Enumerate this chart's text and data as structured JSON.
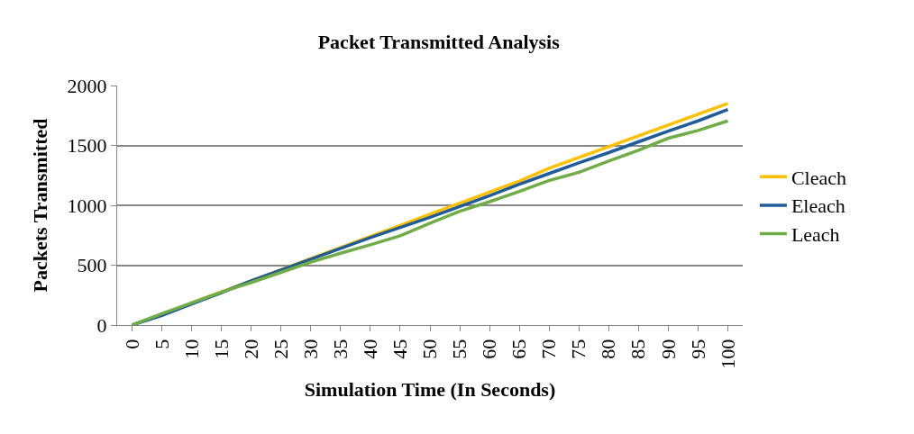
{
  "chart_data": {
    "type": "line",
    "title": "Packet Transmitted Analysis",
    "xlabel": "Simulation Time (In Seconds)",
    "ylabel": "Packets Transmitted",
    "categories": [
      "0",
      "5",
      "10",
      "15",
      "20",
      "25",
      "30",
      "35",
      "40",
      "45",
      "50",
      "55",
      "60",
      "65",
      "70",
      "75",
      "80",
      "85",
      "90",
      "95",
      "100"
    ],
    "series": [
      {
        "name": "Cleach",
        "color": "#ffc000",
        "values": [
          null,
          null,
          185,
          277,
          370,
          462,
          555,
          647,
          740,
          832,
          925,
          1017,
          1110,
          1202,
          1310,
          1400,
          1490,
          1580,
          1670,
          1760,
          1850
        ]
      },
      {
        "name": "Eleach",
        "color": "#1f5c99",
        "values": [
          0,
          80,
          175,
          270,
          370,
          460,
          550,
          640,
          730,
          815,
          900,
          990,
          1080,
          1175,
          1265,
          1355,
          1440,
          1530,
          1620,
          1705,
          1800
        ]
      },
      {
        "name": "Leach",
        "color": "#70ad47",
        "values": [
          0,
          95,
          185,
          275,
          355,
          440,
          525,
          600,
          670,
          745,
          850,
          950,
          1030,
          1115,
          1207,
          1275,
          1370,
          1460,
          1560,
          1625,
          1705
        ]
      }
    ],
    "ylim": [
      0,
      2000
    ],
    "yticks": [
      0,
      500,
      1000,
      1500,
      2000
    ],
    "grid": "y",
    "legend": "right",
    "marker": "none",
    "line_style": "solid"
  }
}
